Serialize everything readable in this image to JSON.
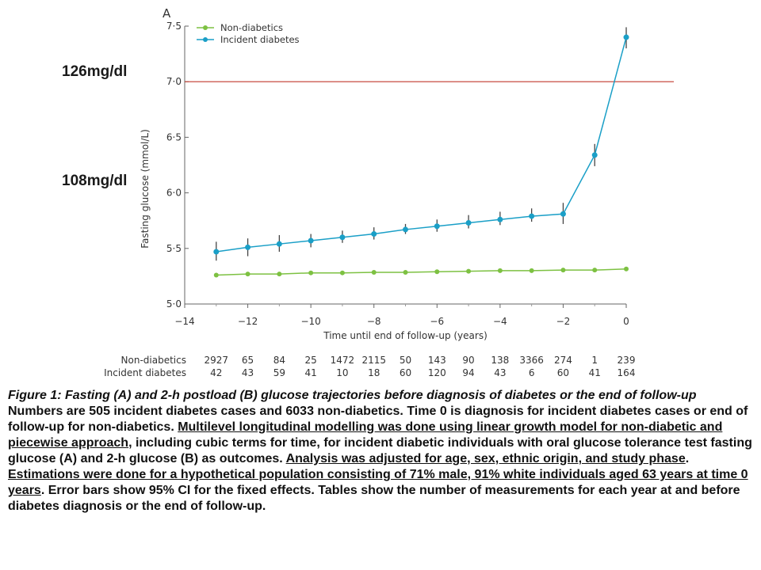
{
  "chart_data": {
    "type": "line",
    "panel_label": "A",
    "xlabel": "Time until end of follow-up (years)",
    "ylabel": "Fasting glucose (mmol/L)",
    "xlim": [
      -14,
      0
    ],
    "ylim": [
      5.0,
      7.5
    ],
    "xticks": [
      -14,
      -12,
      -10,
      -8,
      -6,
      -4,
      -2,
      0
    ],
    "xtick_labels": [
      "−14",
      "−12",
      "−10",
      "−8",
      "−6",
      "−4",
      "−2",
      "0"
    ],
    "yticks": [
      5.0,
      5.5,
      6.0,
      6.5,
      7.0,
      7.5
    ],
    "ytick_labels": [
      "5·0",
      "5·5",
      "6·0",
      "6·5",
      "7·0",
      "7·5"
    ],
    "legend_placement": "top-left",
    "x": [
      -13,
      -12,
      -11,
      -10,
      -9,
      -8,
      -7,
      -6,
      -5,
      -4,
      -3,
      -2,
      -1,
      0
    ],
    "series": [
      {
        "name": "Non-diabetics",
        "color": "#7dc142",
        "values": [
          5.26,
          5.27,
          5.27,
          5.28,
          5.28,
          5.285,
          5.285,
          5.29,
          5.295,
          5.3,
          5.3,
          5.305,
          5.305,
          5.315
        ]
      },
      {
        "name": "Incident diabetes",
        "color": "#1a9fc7",
        "values": [
          5.47,
          5.51,
          5.54,
          5.57,
          5.6,
          5.63,
          5.67,
          5.7,
          5.73,
          5.76,
          5.79,
          5.81,
          6.34,
          7.4
        ],
        "ci_low": [
          5.39,
          5.43,
          5.47,
          5.51,
          5.55,
          5.58,
          5.63,
          5.65,
          5.68,
          5.71,
          5.74,
          5.72,
          6.24,
          7.3
        ],
        "ci_high": [
          5.56,
          5.59,
          5.62,
          5.63,
          5.66,
          5.69,
          5.72,
          5.76,
          5.8,
          5.83,
          5.86,
          5.91,
          6.44,
          7.49
        ]
      }
    ],
    "reference_line": {
      "y": 7.0,
      "color": "#c0392b"
    },
    "annotations": [
      {
        "text": "126mg/dl",
        "y": 7.1
      },
      {
        "text": "108mg/dl",
        "y": 6.12
      }
    ],
    "counts_table": {
      "rows": [
        {
          "label": "Non-diabetics",
          "values": [
            "2927",
            "65",
            "84",
            "25",
            "1472",
            "2115",
            "50",
            "143",
            "90",
            "138",
            "3366",
            "274",
            "1",
            "239"
          ]
        },
        {
          "label": "Incident diabetes",
          "values": [
            "42",
            "43",
            "59",
            "41",
            "10",
            "18",
            "60",
            "120",
            "94",
            "43",
            "6",
            "60",
            "41",
            "164"
          ]
        }
      ]
    }
  },
  "caption": {
    "title": "Figure 1: Fasting (A) and 2-h postload (B) glucose trajectories before diagnosis of diabetes or the end of follow-up",
    "body_parts": [
      {
        "text": "Numbers are 505 incident diabetes cases and 6033 non-diabetics. Time 0 is diagnosis for incident diabetes cases or end of follow-up for non-diabetics. ",
        "u": false
      },
      {
        "text": "Multilevel longitudinal modelling was done using linear growth model for non-diabetic and piecewise approach",
        "u": true
      },
      {
        "text": ", including cubic terms for time, for incident diabetic individuals with oral glucose tolerance test fasting glucose (A) and 2-h glucose (B) as outcomes. ",
        "u": false
      },
      {
        "text": "Analysis was adjusted for age, sex, ethnic origin, and study phase",
        "u": true
      },
      {
        "text": ". ",
        "u": false
      },
      {
        "text": "Estimations were done for a hypothetical population consisting of 71% male, 91% white individuals aged 63 years at time 0 years",
        "u": true
      },
      {
        "text": ". Error bars show 95% CI for the fixed effects. Tables show the number of measurements for each year at and before diabetes diagnosis or the end of follow-up.",
        "u": false
      }
    ]
  }
}
